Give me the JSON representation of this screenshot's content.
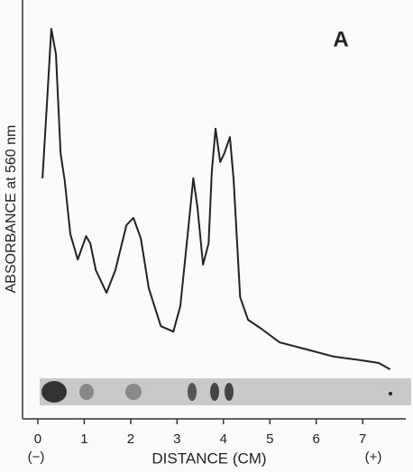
{
  "chart_data": {
    "type": "line",
    "panel_label": "A",
    "y_label": "ABSORBANCE at 560 nm",
    "x_label": "DISTANCE (CM)",
    "x_start_label": "(−)",
    "x_end_label": "(+)",
    "x": [
      0.1,
      0.19,
      0.29,
      0.39,
      0.49,
      0.58,
      0.7,
      0.86,
      1.04,
      1.13,
      1.25,
      1.48,
      1.67,
      1.91,
      2.06,
      2.22,
      2.39,
      2.65,
      2.92,
      3.07,
      3.23,
      3.35,
      3.44,
      3.56,
      3.68,
      3.75,
      3.83,
      3.93,
      4.02,
      4.14,
      4.22,
      4.36,
      4.53,
      4.82,
      5.21,
      5.8,
      6.38,
      6.96,
      7.35,
      7.59
    ],
    "series": [
      {
        "color": "#222222",
        "values": [
          60.7,
          78.4,
          98.4,
          92,
          67,
          60,
          46.6,
          40.2,
          46.1,
          44.3,
          37.5,
          31.8,
          37.5,
          48.9,
          50.7,
          45.5,
          33,
          23.4,
          22,
          28.4,
          46.6,
          60.7,
          53.4,
          38.9,
          44.3,
          62.5,
          73.2,
          64.8,
          67,
          71.1,
          60.2,
          30.7,
          25,
          22.7,
          19.3,
          17.5,
          15.7,
          14.8,
          14.1,
          12.5
        ]
      }
    ],
    "xlim": [
      -0.33,
      7.93
    ],
    "ylim": [
      0,
      100
    ],
    "xticks": [
      0,
      1,
      2,
      3,
      4,
      5,
      6,
      7
    ]
  }
}
